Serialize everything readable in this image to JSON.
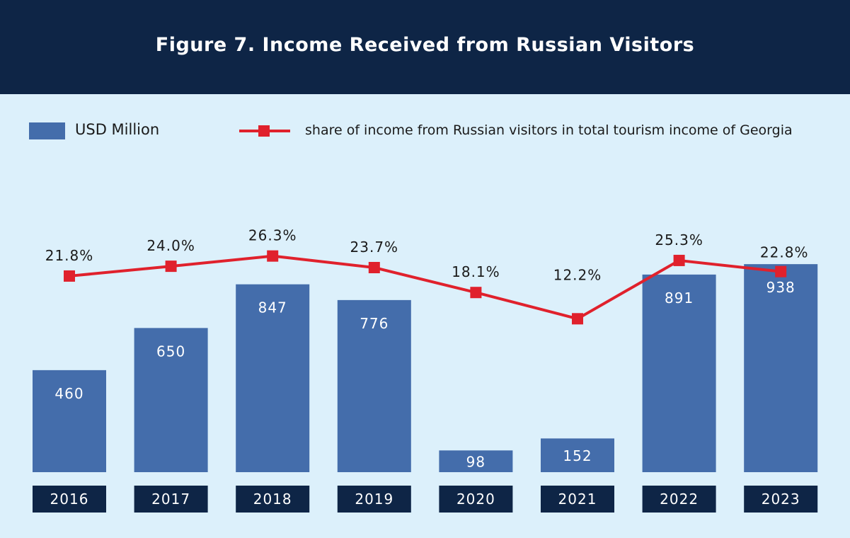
{
  "title": "Figure 7. Income Received from Russian Visitors",
  "legend": {
    "bar_label": "USD Million",
    "line_label": "share of income from Russian visitors in total tourism income of Georgia"
  },
  "colors": {
    "header": "#0e2546",
    "background": "#dcf0fb",
    "bar": "#446dab",
    "line": "#e0212c",
    "year_box": "#0e2546"
  },
  "chart_data": {
    "type": "bar",
    "categories": [
      "2016",
      "2017",
      "2018",
      "2019",
      "2020",
      "2021",
      "2022",
      "2023"
    ],
    "series": [
      {
        "name": "USD Million",
        "type": "bar",
        "values": [
          460,
          650,
          847,
          776,
          98,
          152,
          891,
          938
        ],
        "labels": [
          "460",
          "650",
          "847",
          "776",
          "98",
          "152",
          "891",
          "938"
        ]
      },
      {
        "name": "share of income from Russian visitors in total tourism income of Georgia",
        "type": "line",
        "values": [
          21.8,
          24.0,
          26.3,
          23.7,
          18.1,
          12.2,
          25.3,
          22.8
        ],
        "labels": [
          "21.8%",
          "24.0%",
          "26.3%",
          "23.7%",
          "18.1%",
          "12.2%",
          "25.3%",
          "22.8%"
        ]
      }
    ],
    "legend_position": "top",
    "grid": false
  }
}
